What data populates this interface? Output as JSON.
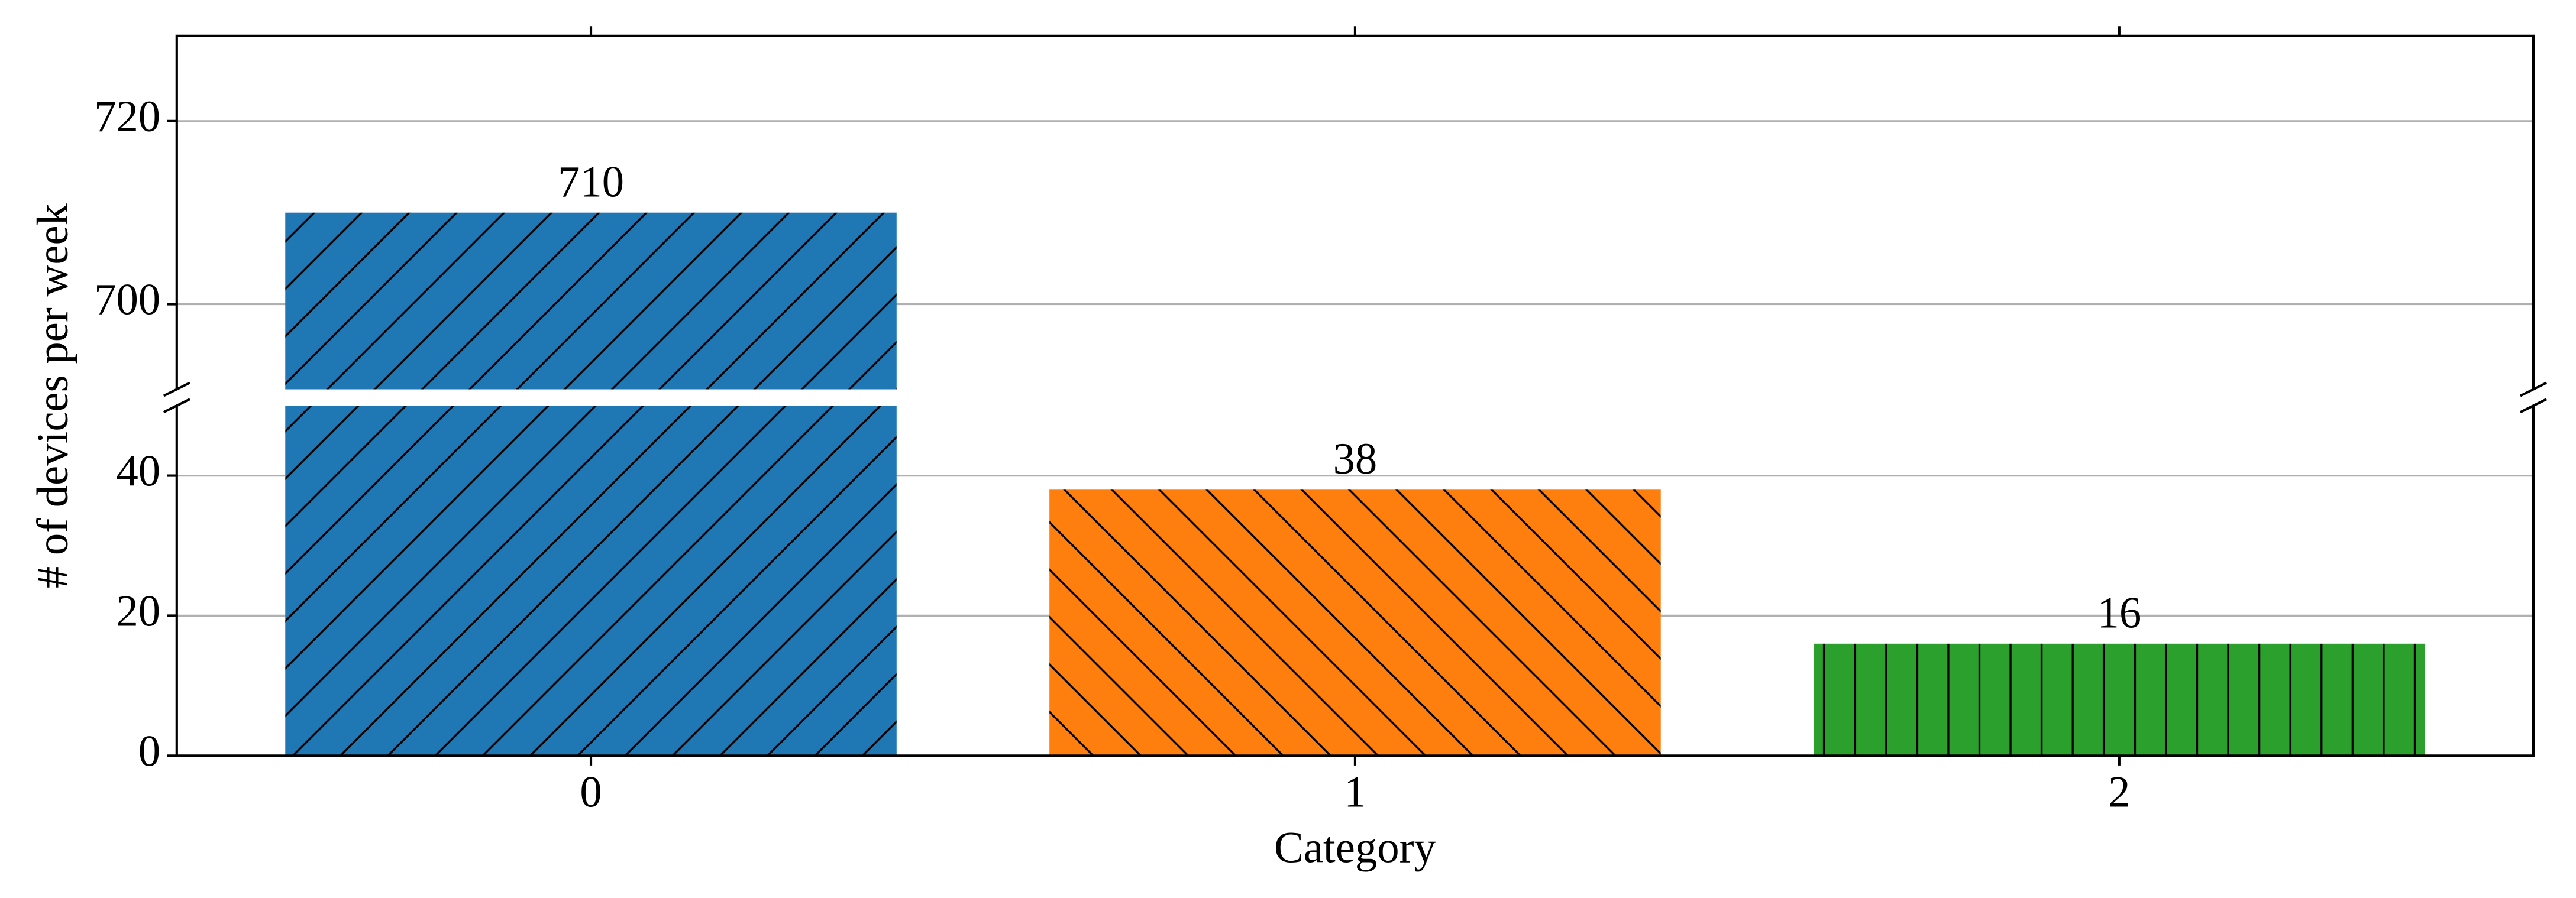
{
  "chart_data": {
    "type": "bar",
    "x_label": "Category",
    "y_label": "# of devices per week",
    "x": [
      0,
      1,
      2
    ],
    "xlim": [
      -0.542,
      2.542
    ],
    "xticks": [
      0,
      1,
      2
    ],
    "values": [
      710,
      38,
      16
    ],
    "colors": [
      "#1f77b4",
      "#ff7f0e",
      "#2ca02c"
    ],
    "hatches": [
      "/",
      "\\",
      "|"
    ],
    "bar_width": 0.8,
    "grid": true,
    "upper": {
      "ylim": [
        690.7,
        729.3
      ],
      "yticks": [
        700,
        720
      ]
    },
    "lower": {
      "ylim": [
        0,
        50
      ],
      "yticks": [
        0,
        20,
        40
      ]
    }
  }
}
